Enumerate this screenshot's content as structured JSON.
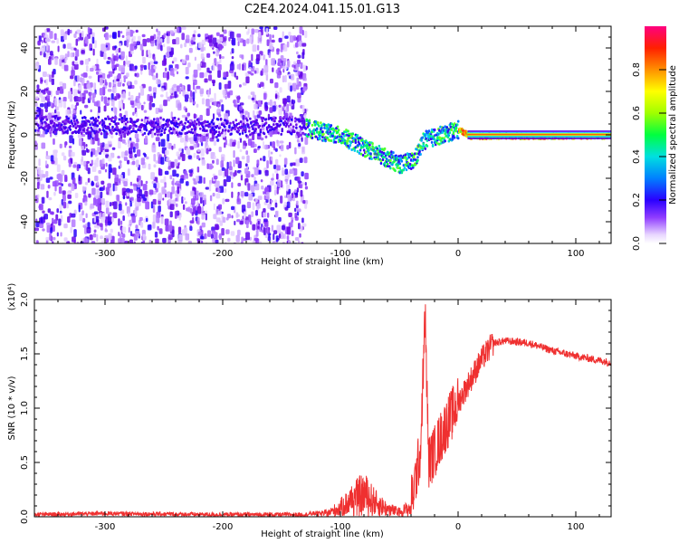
{
  "figure_title": "C2E4.2024.041.15.01.G13",
  "colors": {
    "spectrum_low": "#e6d2ff",
    "spectrum_mid": "#6a00e8",
    "snr_line": "#ef3030",
    "axis": "#000000"
  },
  "chart_data": [
    {
      "type": "heatmap",
      "title": "",
      "xlabel": "Height of straight line (km)",
      "ylabel": "Frequency (Hz)",
      "xlim": [
        -360,
        130
      ],
      "ylim": [
        -50,
        50
      ],
      "xticks": [
        -300,
        -200,
        -100,
        0,
        100
      ],
      "yticks": [
        -40,
        -20,
        0,
        20,
        40
      ],
      "colorbar": {
        "label": "Normalized spectral amplitude",
        "range": [
          0.0,
          1.0
        ],
        "ticks": [
          "0.0",
          "0.2",
          "0.4",
          "0.6",
          "0.8"
        ],
        "colormap": "rainbow (purple to magenta-red)"
      },
      "features": {
        "noise_region_x": [
          -360,
          -130
        ],
        "signal_track": [
          {
            "x": -300,
            "y": 5
          },
          {
            "x": -200,
            "y": 4
          },
          {
            "x": -140,
            "y": 5
          },
          {
            "x": -100,
            "y": 0
          },
          {
            "x": -70,
            "y": -8
          },
          {
            "x": -50,
            "y": -13
          },
          {
            "x": -38,
            "y": -11
          },
          {
            "x": -30,
            "y": -2
          },
          {
            "x": 0,
            "y": 3
          },
          {
            "x": 10,
            "y": 0
          },
          {
            "x": 130,
            "y": 0
          }
        ],
        "steady_tone_y": 0,
        "steady_tone_x": [
          0,
          130
        ]
      }
    },
    {
      "type": "line",
      "title": "",
      "xlabel": "Height of straight line (km)",
      "ylabel": "SNR (10 * v/v)",
      "yscale_label": "(x10⁴)",
      "xlim": [
        -360,
        130
      ],
      "ylim": [
        0.0,
        2.0
      ],
      "xticks": [
        -300,
        -200,
        -100,
        0,
        100
      ],
      "yticks": [
        "0.0",
        "0.5",
        "1.0",
        "1.5",
        "2.0"
      ],
      "series": [
        {
          "x": [
            -360,
            -300,
            -200,
            -130,
            -110,
            -100,
            -90,
            -80,
            -70,
            -60,
            -50,
            -40,
            -32,
            -28,
            -25,
            -20,
            -10,
            0,
            10,
            20,
            30,
            40,
            60,
            80,
            100,
            130
          ],
          "y": [
            0.02,
            0.03,
            0.02,
            0.02,
            0.05,
            0.12,
            0.22,
            0.3,
            0.18,
            0.1,
            0.06,
            0.12,
            0.6,
            1.85,
            0.5,
            0.6,
            0.85,
            1.05,
            1.25,
            1.45,
            1.6,
            1.62,
            1.6,
            1.53,
            1.48,
            1.42
          ]
        }
      ]
    }
  ]
}
